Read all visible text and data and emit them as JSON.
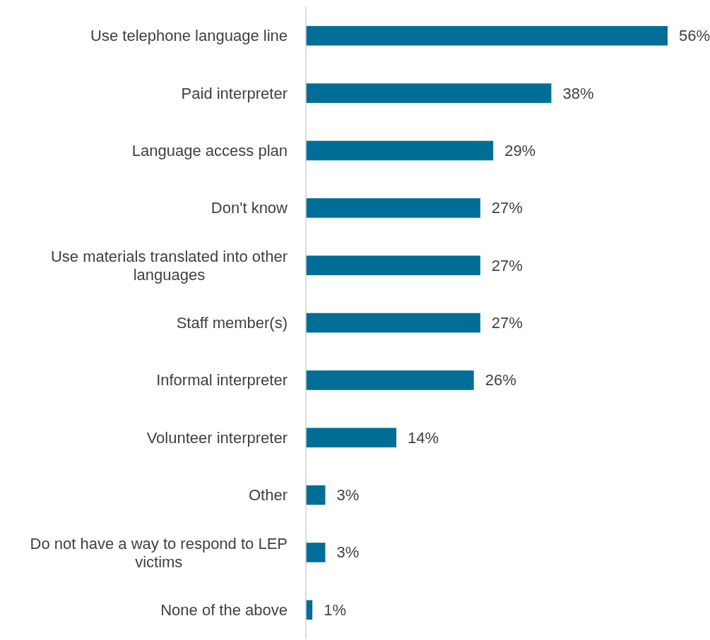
{
  "chart_data": {
    "type": "bar",
    "orientation": "horizontal",
    "categories": [
      "Use telephone language line",
      "Paid interpreter",
      "Language access plan",
      "Don't know",
      "Use materials translated into other languages",
      "Staff member(s)",
      "Informal interpreter",
      "Volunteer interpreter",
      "Other",
      "Do not have a way to respond to LEP victims",
      "None of the above"
    ],
    "values": [
      56,
      38,
      29,
      27,
      27,
      27,
      26,
      14,
      3,
      3,
      1
    ],
    "value_labels": [
      "56%",
      "38%",
      "29%",
      "27%",
      "27%",
      "27%",
      "26%",
      "14%",
      "3%",
      "3%",
      "1%"
    ],
    "color": "#006e96"
  }
}
